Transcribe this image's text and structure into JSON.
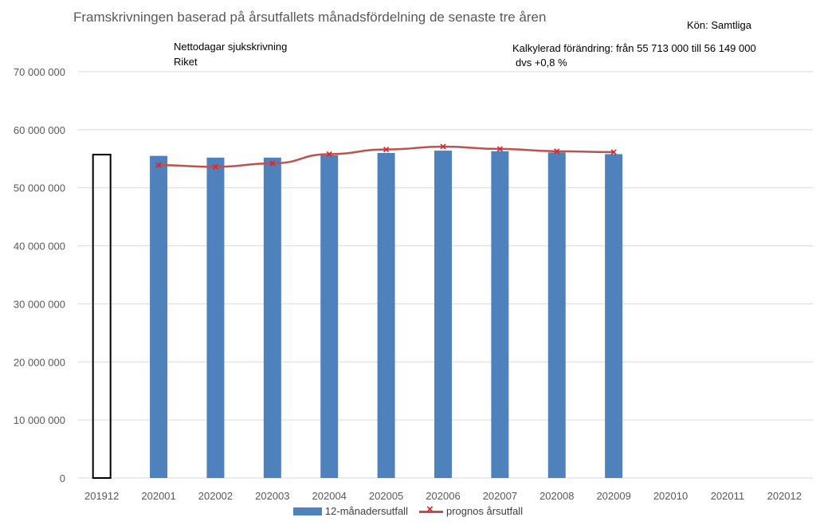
{
  "header": {
    "title": "Framskrivningen baserad på årsutfallets månadsfördelning de senaste tre åren",
    "subtitle_line1": "Nettodagar sjukskrivning",
    "subtitle_line2": "Riket",
    "gender": "Kön: Samtliga",
    "change_line1": "Kalkylerad förändring: från 55 713 000 till 56 149 000",
    "change_line2": "dvs +0,8 %"
  },
  "colors": {
    "bar": "#4f81bd",
    "line": "#c0504d",
    "marker": "#e0202a",
    "outline_bar": "#000000",
    "grid": "#d9d9d9"
  },
  "chart_data": {
    "type": "bar",
    "title": "Framskrivningen baserad på årsutfallets månadsfördelning de senaste tre åren",
    "xlabel": "",
    "ylabel": "",
    "ylim": [
      0,
      70000000
    ],
    "yticks": [
      0,
      10000000,
      20000000,
      30000000,
      40000000,
      50000000,
      60000000,
      70000000
    ],
    "ytick_labels": [
      "0",
      "10 000 000",
      "20 000 000",
      "30 000 000",
      "40 000 000",
      "50 000 000",
      "60 000 000",
      "70 000 000"
    ],
    "grid": true,
    "legend_position": "bottom",
    "categories": [
      "201912",
      "202001",
      "202002",
      "202003",
      "202004",
      "202005",
      "202006",
      "202007",
      "202008",
      "202009",
      "202010",
      "202011",
      "202012"
    ],
    "reference_bar": {
      "category": "201912",
      "value": 55713000,
      "style": "outline"
    },
    "series": [
      {
        "name": "12-månadersutfall",
        "type": "bar",
        "values": [
          null,
          55500000,
          55200000,
          55200000,
          55600000,
          56000000,
          56400000,
          56300000,
          56100000,
          55800000,
          null,
          null,
          null
        ]
      },
      {
        "name": "prognos årsutfall",
        "type": "line",
        "marker": "x",
        "values": [
          null,
          53900000,
          53600000,
          54200000,
          55800000,
          56600000,
          57100000,
          56700000,
          56300000,
          56149000,
          null,
          null,
          null
        ]
      }
    ]
  }
}
